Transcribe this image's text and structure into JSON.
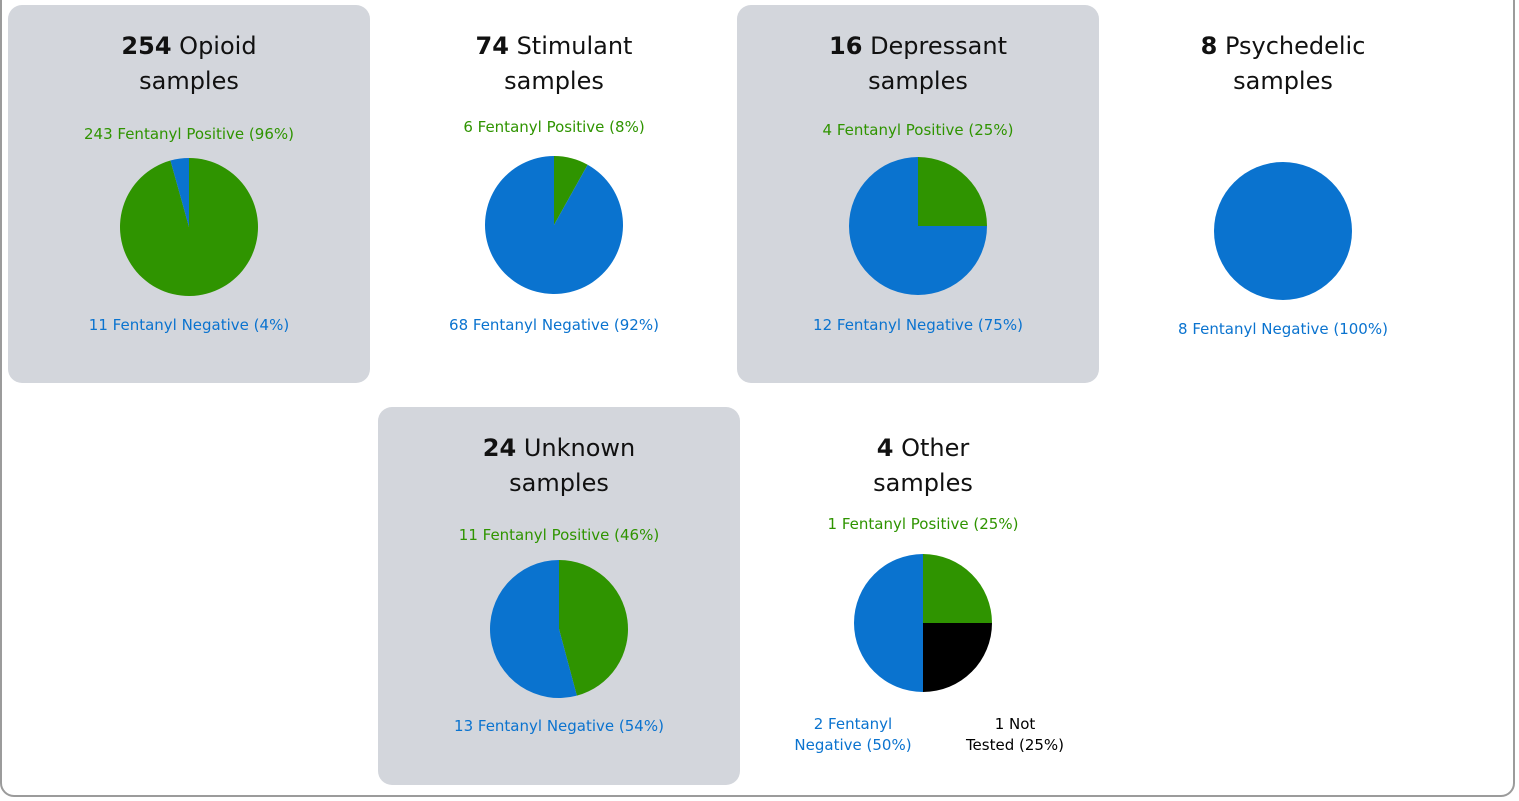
{
  "colors": {
    "positive": "#2f9400",
    "negative": "#0a73cf",
    "not_tested": "#000000",
    "panel_shade": "#d3d6dc"
  },
  "chart_data": [
    {
      "type": "pie",
      "count": "254",
      "category": "Opioid",
      "unit": "samples",
      "slices": [
        {
          "label": "Fentanyl Positive",
          "value": 243
        },
        {
          "label": "Fentanyl Negative",
          "value": 11
        }
      ],
      "pos_label": "243 Fentanyl Positive (96%)",
      "neg_label": "11 Fentanyl Negative (4%)"
    },
    {
      "type": "pie",
      "count": "74",
      "category": "Stimulant",
      "unit": "samples",
      "slices": [
        {
          "label": "Fentanyl Positive",
          "value": 6
        },
        {
          "label": "Fentanyl Negative",
          "value": 68
        }
      ],
      "pos_label": "6 Fentanyl Positive (8%)",
      "neg_label": "68 Fentanyl Negative (92%)"
    },
    {
      "type": "pie",
      "count": "16",
      "category": "Depressant",
      "unit": "samples",
      "slices": [
        {
          "label": "Fentanyl Positive",
          "value": 4
        },
        {
          "label": "Fentanyl Negative",
          "value": 12
        }
      ],
      "pos_label": "4 Fentanyl Positive (25%)",
      "neg_label": "12 Fentanyl Negative (75%)"
    },
    {
      "type": "pie",
      "count": "8",
      "category": "Psychedelic",
      "unit": "samples",
      "slices": [
        {
          "label": "Fentanyl Positive",
          "value": 0
        },
        {
          "label": "Fentanyl Negative",
          "value": 8
        }
      ],
      "pos_label": "",
      "neg_label": "8 Fentanyl Negative (100%)"
    },
    {
      "type": "pie",
      "count": "24",
      "category": "Unknown",
      "unit": "samples",
      "slices": [
        {
          "label": "Fentanyl Positive",
          "value": 11
        },
        {
          "label": "Fentanyl Negative",
          "value": 13
        }
      ],
      "pos_label": "11 Fentanyl Positive (46%)",
      "neg_label": "13 Fentanyl Negative (54%)"
    },
    {
      "type": "pie",
      "count": "4",
      "category": "Other",
      "unit": "samples",
      "slices": [
        {
          "label": "Fentanyl Positive",
          "value": 1
        },
        {
          "label": "Not Tested",
          "value": 1
        },
        {
          "label": "Fentanyl Negative",
          "value": 2
        }
      ],
      "pos_label": "1 Fentanyl Positive (25%)",
      "neg_label_lines": [
        "2 Fentanyl",
        "Negative (50%)"
      ],
      "not_tested_label_lines": [
        "1 Not",
        "Tested (25%)"
      ]
    }
  ]
}
